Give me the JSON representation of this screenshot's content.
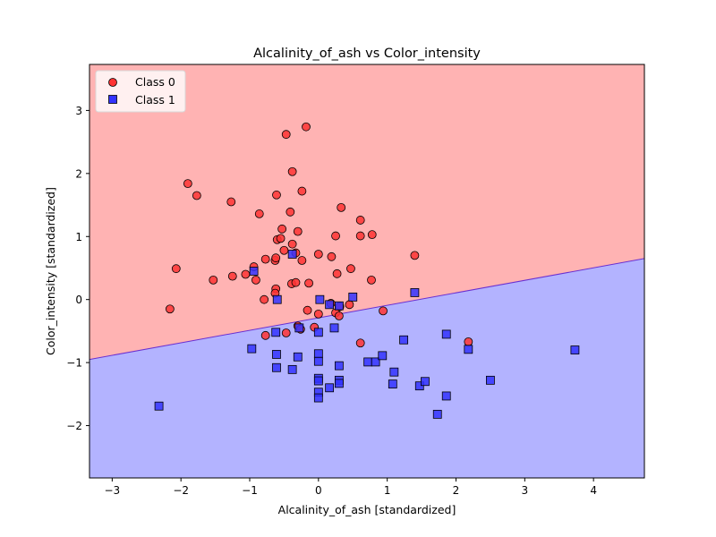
{
  "chart_data": {
    "type": "scatter",
    "title": "Alcalinity_of_ash vs Color_intensity",
    "xlabel": "Alcalinity_of_ash [standardized]",
    "ylabel": "Color_intensity [standardized]",
    "xlim": [
      -3.33,
      4.74
    ],
    "ylim": [
      -2.83,
      3.73
    ],
    "x_ticks": [
      "−3",
      "−2",
      "−1",
      "0",
      "1",
      "2",
      "3",
      "4"
    ],
    "y_ticks": [
      "−2",
      "−1",
      "0",
      "1",
      "2",
      "3"
    ],
    "grid": false,
    "legend_position": "top-left",
    "decision_boundary": {
      "x": [
        -3.33,
        4.74
      ],
      "y": [
        -0.95,
        0.65
      ]
    },
    "regions": {
      "upper_color": "#ffb3b3",
      "lower_color": "#b3b3ff",
      "boundary_color": "#6a2fd0"
    },
    "series": [
      {
        "name": "Class 0",
        "marker": "circle",
        "color": "#ff3333",
        "points": [
          [
            -0.47,
            2.62
          ],
          [
            -0.18,
            2.74
          ],
          [
            -1.9,
            1.84
          ],
          [
            -1.77,
            1.65
          ],
          [
            -1.27,
            1.55
          ],
          [
            -0.38,
            2.03
          ],
          [
            -0.61,
            1.66
          ],
          [
            -0.24,
            1.72
          ],
          [
            -0.86,
            1.36
          ],
          [
            -0.41,
            1.39
          ],
          [
            0.33,
            1.46
          ],
          [
            -0.53,
            1.12
          ],
          [
            -0.3,
            1.08
          ],
          [
            -0.6,
            0.95
          ],
          [
            -0.55,
            0.97
          ],
          [
            -0.38,
            0.88
          ],
          [
            0.25,
            1.01
          ],
          [
            0.61,
            1.26
          ],
          [
            0.61,
            1.01
          ],
          [
            0.78,
            1.03
          ],
          [
            -2.07,
            0.49
          ],
          [
            -1.53,
            0.31
          ],
          [
            -1.25,
            0.37
          ],
          [
            -1.06,
            0.4
          ],
          [
            -0.94,
            0.52
          ],
          [
            -0.77,
            0.64
          ],
          [
            -0.63,
            0.62
          ],
          [
            -0.62,
            0.66
          ],
          [
            -0.5,
            0.78
          ],
          [
            -0.33,
            0.74
          ],
          [
            -0.24,
            0.62
          ],
          [
            0.0,
            0.72
          ],
          [
            0.19,
            0.68
          ],
          [
            0.27,
            0.41
          ],
          [
            0.47,
            0.49
          ],
          [
            1.4,
            0.7
          ],
          [
            -0.91,
            0.31
          ],
          [
            -0.62,
            0.17
          ],
          [
            -0.63,
            0.1
          ],
          [
            -0.39,
            0.25
          ],
          [
            -0.33,
            0.27
          ],
          [
            -0.14,
            0.26
          ],
          [
            0.77,
            0.31
          ],
          [
            -0.79,
            0.0
          ],
          [
            -2.16,
            -0.15
          ],
          [
            -0.16,
            -0.17
          ],
          [
            0.0,
            -0.23
          ],
          [
            0.18,
            -0.06
          ],
          [
            0.25,
            -0.21
          ],
          [
            0.3,
            -0.26
          ],
          [
            0.31,
            -0.11
          ],
          [
            0.45,
            -0.08
          ],
          [
            0.94,
            -0.18
          ],
          [
            -0.3,
            -0.42
          ],
          [
            -0.26,
            -0.47
          ],
          [
            -0.06,
            -0.44
          ],
          [
            -0.47,
            -0.53
          ],
          [
            -0.77,
            -0.57
          ],
          [
            0.61,
            -0.69
          ],
          [
            2.18,
            -0.67
          ]
        ]
      },
      {
        "name": "Class 1",
        "marker": "square",
        "color": "#3333ff",
        "points": [
          [
            -0.94,
            0.45
          ],
          [
            -0.38,
            0.72
          ],
          [
            -0.6,
            0.0
          ],
          [
            0.02,
            0.0
          ],
          [
            0.16,
            -0.08
          ],
          [
            0.5,
            0.04
          ],
          [
            1.4,
            0.11
          ],
          [
            0.3,
            -0.1
          ],
          [
            0.23,
            -0.45
          ],
          [
            -0.62,
            -0.52
          ],
          [
            -0.0,
            -0.52
          ],
          [
            -0.28,
            -0.45
          ],
          [
            -0.97,
            -0.78
          ],
          [
            -0.61,
            -0.87
          ],
          [
            -0.3,
            -0.91
          ],
          [
            0.0,
            -0.86
          ],
          [
            0.0,
            -0.98
          ],
          [
            -0.61,
            -1.08
          ],
          [
            -0.38,
            -1.11
          ],
          [
            0.3,
            -1.05
          ],
          [
            0.72,
            -0.99
          ],
          [
            0.83,
            -0.99
          ],
          [
            0.93,
            -0.89
          ],
          [
            1.24,
            -0.64
          ],
          [
            1.86,
            -0.55
          ],
          [
            2.18,
            -0.79
          ],
          [
            3.73,
            -0.8
          ],
          [
            1.1,
            -1.15
          ],
          [
            0.0,
            -1.25
          ],
          [
            0.0,
            -1.29
          ],
          [
            0.3,
            -1.28
          ],
          [
            0.3,
            -1.33
          ],
          [
            0.16,
            -1.4
          ],
          [
            1.08,
            -1.34
          ],
          [
            1.47,
            -1.37
          ],
          [
            1.55,
            -1.3
          ],
          [
            2.5,
            -1.28
          ],
          [
            0.0,
            -1.47
          ],
          [
            0.0,
            -1.56
          ],
          [
            1.86,
            -1.53
          ],
          [
            1.73,
            -1.82
          ],
          [
            -2.32,
            -1.69
          ]
        ]
      }
    ]
  }
}
